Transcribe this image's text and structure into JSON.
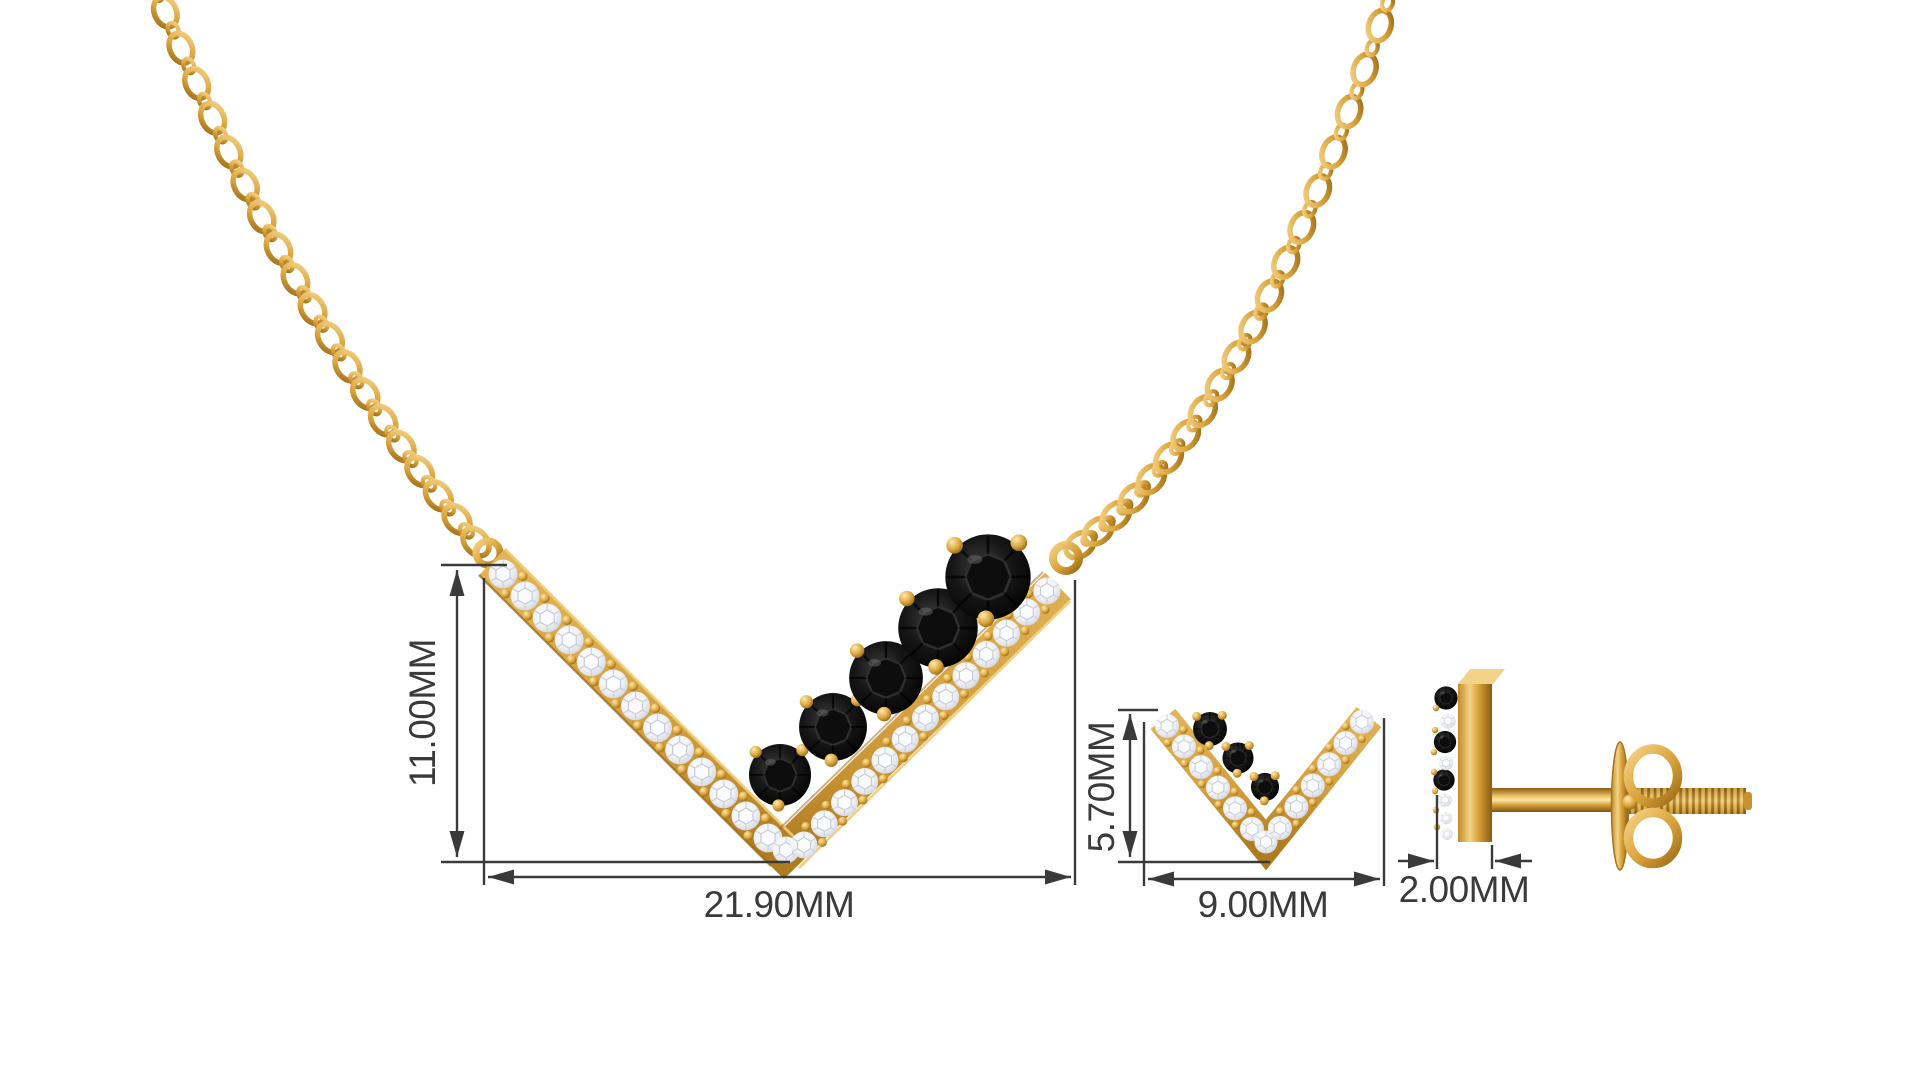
{
  "image": {
    "type": "jewelry product dimension render",
    "background": "#ffffff"
  },
  "necklace": {
    "name": "gold chevron V pendant necklace with black stones and diamonds",
    "chain_style": "cable link chain",
    "black_stone_count": 5,
    "height_label": "11.00MM",
    "width_label": "21.90MM"
  },
  "earring_front": {
    "name": "gold chevron stud earring front view",
    "black_stone_count": 3,
    "height_label": "5.70MM",
    "width_label": "9.00MM"
  },
  "earring_side": {
    "name": "stud earring side view with screw back post and butterfly clasp",
    "thickness_label": "2.00MM"
  },
  "style": {
    "annotation_color": "#3a3a3a",
    "gold": "#d9a23a",
    "gold_light": "#f3d07c",
    "gold_dark": "#8a5c12",
    "diamond": "#eef0f4",
    "black_stone": "#0a0a0a"
  }
}
